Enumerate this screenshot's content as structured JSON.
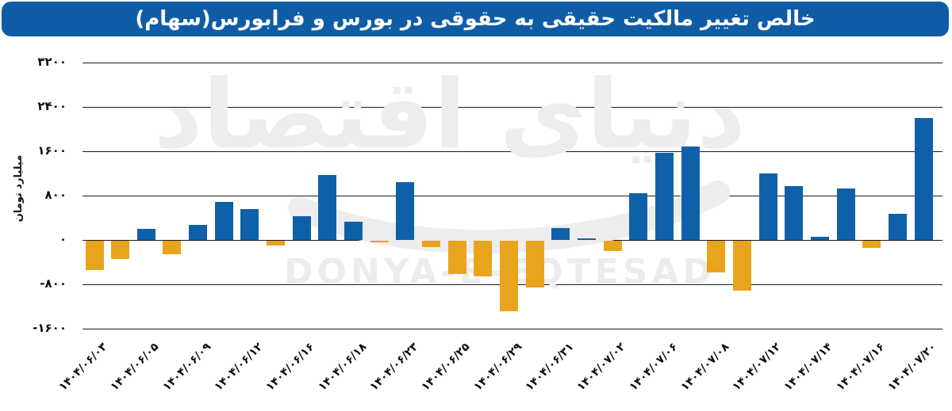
{
  "watermark": {
    "persian_text": "دنیای اقتصاد",
    "latin_text": "DONYA-E-EQTESAD"
  },
  "colors": {
    "banner_background": "#0f5ca6",
    "title_text": "#ffffff",
    "positive_bar": "#0e61a8",
    "negative_bar": "#e8a41c",
    "gridline": "#1c1c1c",
    "watermark": "#ededed"
  },
  "chart_data": {
    "type": "bar",
    "title": "خالص تغییر مالکیت حقیقی به حقوقی در بورس و فرابورس(سهام)",
    "ylabel": "میلیارد تومان",
    "ylim": [
      -1600,
      3200
    ],
    "grid": true,
    "legend": "none",
    "yticks": [
      {
        "value": 3200,
        "label": "۳۲۰۰"
      },
      {
        "value": 2400,
        "label": "۲۴۰۰"
      },
      {
        "value": 1600,
        "label": "۱۶۰۰"
      },
      {
        "value": 800,
        "label": "۸۰۰"
      },
      {
        "value": 0,
        "label": "۰"
      },
      {
        "value": -800,
        "label": "-۸۰۰"
      },
      {
        "value": -1600,
        "label": "-۱۶۰۰"
      }
    ],
    "bars": [
      {
        "value": -530,
        "label": "۱۴۰۴/۰۶/۰۳"
      },
      {
        "value": -330,
        "label": ""
      },
      {
        "value": 200,
        "label": "۱۴۰۴/۰۶/۰۵"
      },
      {
        "value": -250,
        "label": ""
      },
      {
        "value": 270,
        "label": "۱۴۰۴/۰۶/۰۹"
      },
      {
        "value": 690,
        "label": ""
      },
      {
        "value": 565,
        "label": "۱۴۰۴/۰۶/۱۲"
      },
      {
        "value": -80,
        "label": ""
      },
      {
        "value": 425,
        "label": "۱۴۰۴/۰۶/۱۶"
      },
      {
        "value": 1175,
        "label": ""
      },
      {
        "value": 330,
        "label": "۱۴۰۴/۰۶/۱۸"
      },
      {
        "value": -30,
        "label": ""
      },
      {
        "value": 1050,
        "label": "۱۴۰۴/۰۶/۲۳"
      },
      {
        "value": -110,
        "label": ""
      },
      {
        "value": -600,
        "label": "۱۴۰۴/۰۶/۲۵"
      },
      {
        "value": -645,
        "label": ""
      },
      {
        "value": -1270,
        "label": "۱۴۰۴/۰۶/۲۹"
      },
      {
        "value": -850,
        "label": ""
      },
      {
        "value": 220,
        "label": "۱۴۰۴/۰۶/۳۱"
      },
      {
        "value": 30,
        "label": ""
      },
      {
        "value": -185,
        "label": "۱۴۰۴/۰۷/۰۲"
      },
      {
        "value": 845,
        "label": ""
      },
      {
        "value": 1580,
        "label": "۱۴۰۴/۰۷/۰۶"
      },
      {
        "value": 1690,
        "label": ""
      },
      {
        "value": -570,
        "label": "۱۴۰۴/۰۷/۰۸"
      },
      {
        "value": -900,
        "label": ""
      },
      {
        "value": 1200,
        "label": "۱۴۰۴/۰۷/۱۲"
      },
      {
        "value": 970,
        "label": ""
      },
      {
        "value": 60,
        "label": "۱۴۰۴/۰۷/۱۴"
      },
      {
        "value": 930,
        "label": ""
      },
      {
        "value": -130,
        "label": "۱۴۰۴/۰۷/۱۶"
      },
      {
        "value": 470,
        "label": ""
      },
      {
        "value": 2210,
        "label": "۱۴۰۴/۰۷/۲۰"
      }
    ]
  }
}
